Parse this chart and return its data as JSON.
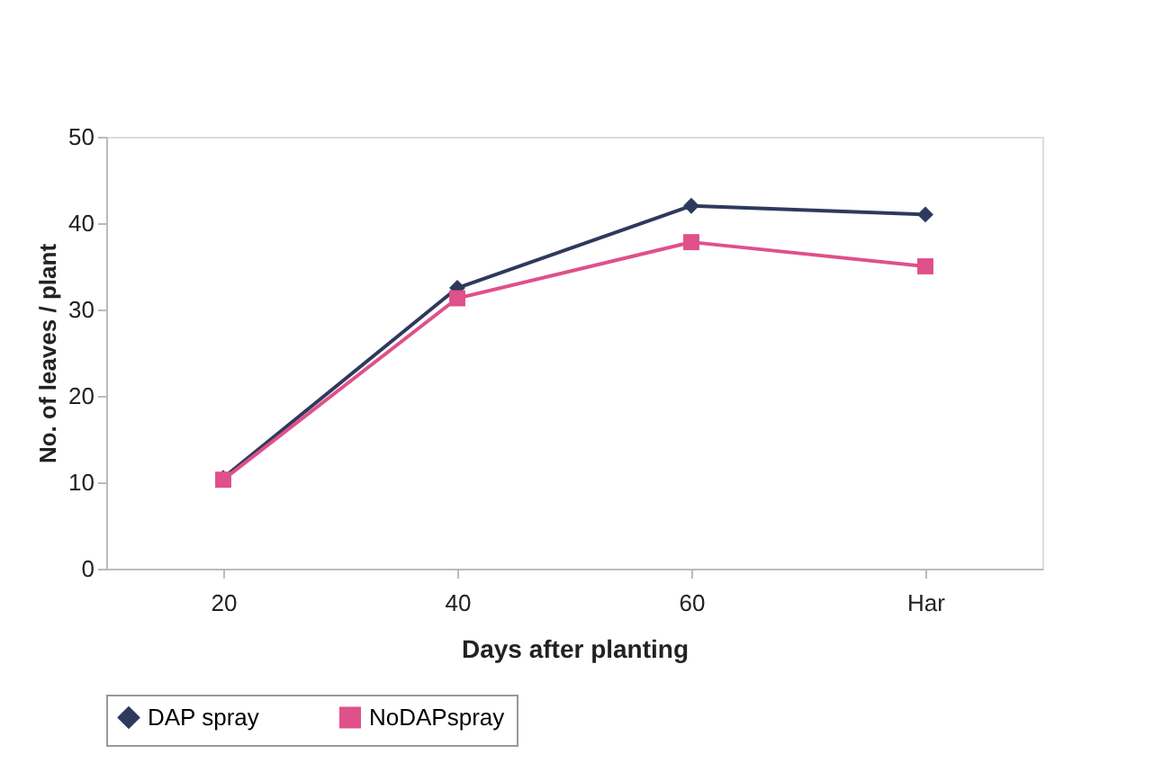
{
  "chart_data": {
    "type": "line",
    "xlabel": "Days after planting",
    "ylabel": "No. of leaves / plant",
    "categories": [
      "20",
      "40",
      "60",
      "Har"
    ],
    "series": [
      {
        "name": "DAP spray",
        "color": "#2e3a5c",
        "marker": "diamond",
        "values": [
          10.5,
          32.5,
          42,
          41
        ]
      },
      {
        "name": "NoDAPspray",
        "color": "#e0508a",
        "marker": "square",
        "values": [
          10.3,
          31.3,
          37.8,
          35
        ]
      }
    ],
    "ylim": [
      0,
      50
    ],
    "yticks": [
      0,
      10,
      20,
      30,
      40,
      50
    ],
    "grid": false,
    "legend": "bottom"
  }
}
